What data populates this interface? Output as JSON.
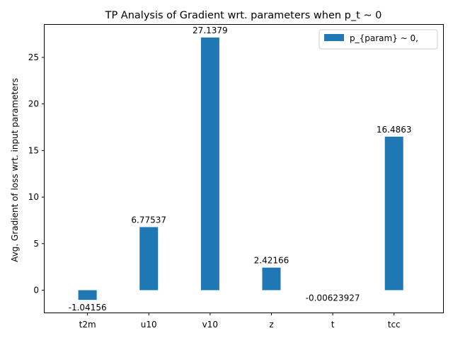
{
  "chart_data": {
    "type": "bar",
    "title": "TP Analysis of Gradient wrt. parameters when p_t ~ 0",
    "xlabel": "",
    "ylabel": "Avg. Gradient of loss wrt. input parameters",
    "categories": [
      "t2m",
      "u10",
      "v10",
      "z",
      "t",
      "tcc"
    ],
    "series": [
      {
        "name": "p_{param} ~ 0,",
        "values": [
          -1.04156,
          6.77537,
          27.1379,
          2.42166,
          -0.00623927,
          16.4863
        ],
        "value_labels": [
          "-1.04156",
          "6.77537",
          "27.1379",
          "2.42166",
          "-0.00623927",
          "16.4863"
        ],
        "color": "#1f77b4"
      }
    ],
    "ylim": [
      -2.4,
      28.5
    ],
    "yticks": [
      0,
      5,
      10,
      15,
      20,
      25
    ],
    "ytick_labels": [
      "0",
      "5",
      "10",
      "15",
      "20",
      "25"
    ],
    "grid": false,
    "legend_position": "top-right"
  }
}
